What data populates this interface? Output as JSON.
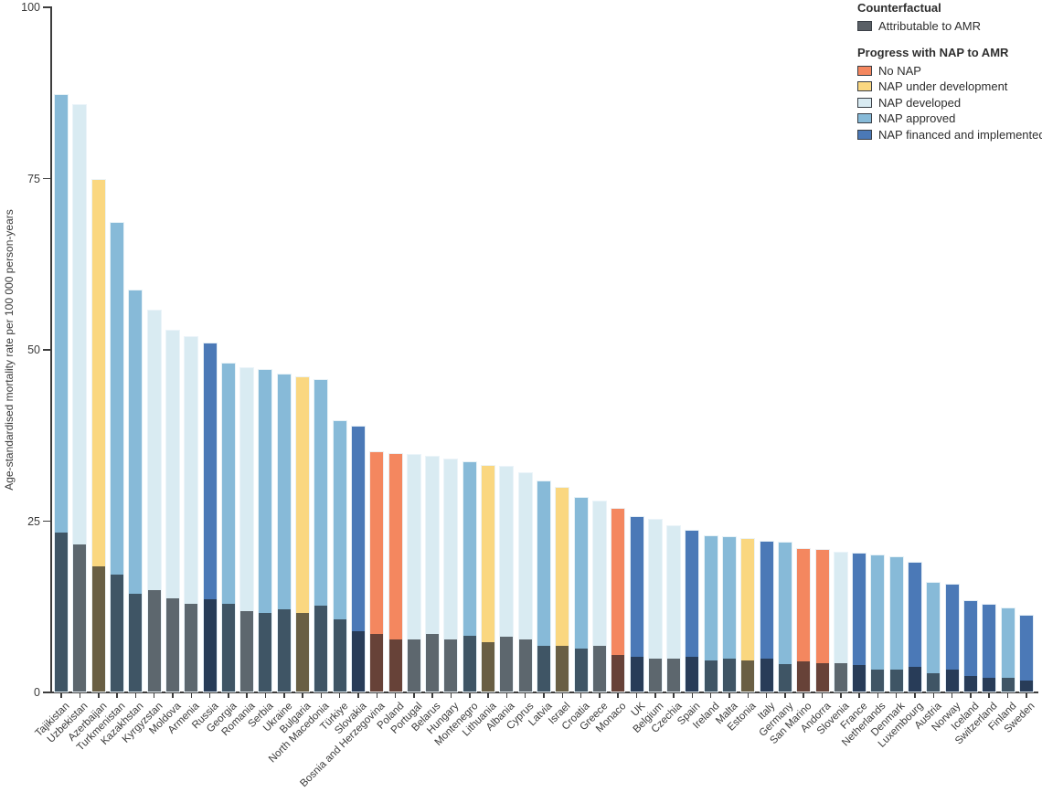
{
  "chart_data": {
    "type": "bar",
    "title": "",
    "xlabel": "",
    "ylabel": "Age-standardised mortality rate per 100 000 person-years",
    "ylim": [
      0,
      100
    ],
    "yticks": [
      0,
      25,
      50,
      75,
      100
    ],
    "grid": false,
    "legend_position": "top-right",
    "legend": {
      "counterfactual_title": "Counterfactual",
      "counterfactual_items": [
        {
          "label": "Attributable to AMR",
          "key": "attributable"
        }
      ],
      "nap_title": "Progress with NAP to AMR",
      "nap_items": [
        {
          "label": "No NAP",
          "key": "no_nap"
        },
        {
          "label": "NAP under development",
          "key": "under_development"
        },
        {
          "label": "NAP developed",
          "key": "developed"
        },
        {
          "label": "NAP approved",
          "key": "approved"
        },
        {
          "label": "NAP financed and implemented",
          "key": "financed"
        }
      ]
    },
    "colors": {
      "no_nap": "#F4875F",
      "under_development": "#FAD780",
      "developed": "#D9EBF2",
      "approved": "#87BAD8",
      "financed": "#4B79B7",
      "attributable_legend": "#5A6066"
    },
    "series_note": "total = full bar height (deaths associated with AMR); attributable = dark overlaid segment (attributable to AMR)",
    "countries": [
      {
        "name": "Tajikistan",
        "total": 87.3,
        "attributable": 23.4,
        "nap": "approved"
      },
      {
        "name": "Uzbekistan",
        "total": 85.9,
        "attributable": 21.6,
        "nap": "developed"
      },
      {
        "name": "Azerbaijan",
        "total": 75.0,
        "attributable": 18.4,
        "nap": "under_development"
      },
      {
        "name": "Turkmenistan",
        "total": 68.7,
        "attributable": 17.2,
        "nap": "approved"
      },
      {
        "name": "Kazakhstan",
        "total": 58.8,
        "attributable": 14.4,
        "nap": "approved"
      },
      {
        "name": "Kyrgyzstan",
        "total": 55.9,
        "attributable": 14.9,
        "nap": "developed"
      },
      {
        "name": "Moldova",
        "total": 52.9,
        "attributable": 13.8,
        "nap": "developed"
      },
      {
        "name": "Armenia",
        "total": 52.0,
        "attributable": 12.9,
        "nap": "developed"
      },
      {
        "name": "Russia",
        "total": 51.1,
        "attributable": 13.6,
        "nap": "financed"
      },
      {
        "name": "Georgia",
        "total": 48.1,
        "attributable": 12.9,
        "nap": "approved"
      },
      {
        "name": "Romania",
        "total": 47.5,
        "attributable": 11.9,
        "nap": "developed"
      },
      {
        "name": "Serbia",
        "total": 47.2,
        "attributable": 11.6,
        "nap": "approved"
      },
      {
        "name": "Ukraine",
        "total": 46.6,
        "attributable": 12.2,
        "nap": "approved"
      },
      {
        "name": "Bulgaria",
        "total": 46.2,
        "attributable": 11.6,
        "nap": "under_development"
      },
      {
        "name": "North Macedonia",
        "total": 45.8,
        "attributable": 12.7,
        "nap": "approved"
      },
      {
        "name": "Türkiye",
        "total": 39.8,
        "attributable": 10.7,
        "nap": "approved"
      },
      {
        "name": "Slovakia",
        "total": 39.0,
        "attributable": 8.9,
        "nap": "financed"
      },
      {
        "name": "Bosnia and Herzegovina",
        "total": 35.2,
        "attributable": 8.6,
        "nap": "no_nap"
      },
      {
        "name": "Poland",
        "total": 34.9,
        "attributable": 7.8,
        "nap": "no_nap"
      },
      {
        "name": "Portugal",
        "total": 34.8,
        "attributable": 7.7,
        "nap": "developed"
      },
      {
        "name": "Belarus",
        "total": 34.6,
        "attributable": 8.6,
        "nap": "developed"
      },
      {
        "name": "Hungary",
        "total": 34.1,
        "attributable": 7.8,
        "nap": "developed"
      },
      {
        "name": "Montenegro",
        "total": 33.8,
        "attributable": 8.3,
        "nap": "approved"
      },
      {
        "name": "Lithuania",
        "total": 33.2,
        "attributable": 7.3,
        "nap": "under_development"
      },
      {
        "name": "Albania",
        "total": 33.1,
        "attributable": 8.1,
        "nap": "developed"
      },
      {
        "name": "Cyprus",
        "total": 32.1,
        "attributable": 7.8,
        "nap": "developed"
      },
      {
        "name": "Latvia",
        "total": 31.0,
        "attributable": 6.8,
        "nap": "approved"
      },
      {
        "name": "Israel",
        "total": 30.0,
        "attributable": 6.8,
        "nap": "under_development"
      },
      {
        "name": "Croatia",
        "total": 28.6,
        "attributable": 6.4,
        "nap": "approved"
      },
      {
        "name": "Greece",
        "total": 28.0,
        "attributable": 6.8,
        "nap": "developed"
      },
      {
        "name": "Monaco",
        "total": 27.0,
        "attributable": 5.5,
        "nap": "no_nap"
      },
      {
        "name": "UK",
        "total": 25.7,
        "attributable": 5.2,
        "nap": "financed"
      },
      {
        "name": "Belgium",
        "total": 25.4,
        "attributable": 5.0,
        "nap": "developed"
      },
      {
        "name": "Czechia",
        "total": 24.4,
        "attributable": 5.0,
        "nap": "developed"
      },
      {
        "name": "Spain",
        "total": 23.8,
        "attributable": 5.2,
        "nap": "financed"
      },
      {
        "name": "Ireland",
        "total": 22.9,
        "attributable": 4.7,
        "nap": "approved"
      },
      {
        "name": "Malta",
        "total": 22.8,
        "attributable": 5.0,
        "nap": "approved"
      },
      {
        "name": "Estonia",
        "total": 22.6,
        "attributable": 4.7,
        "nap": "under_development"
      },
      {
        "name": "Italy",
        "total": 22.2,
        "attributable": 5.0,
        "nap": "financed"
      },
      {
        "name": "Germany",
        "total": 22.0,
        "attributable": 4.1,
        "nap": "approved"
      },
      {
        "name": "San Marino",
        "total": 21.1,
        "attributable": 4.5,
        "nap": "no_nap"
      },
      {
        "name": "Andorra",
        "total": 21.0,
        "attributable": 4.3,
        "nap": "no_nap"
      },
      {
        "name": "Slovenia",
        "total": 20.6,
        "attributable": 4.3,
        "nap": "developed"
      },
      {
        "name": "France",
        "total": 20.4,
        "attributable": 4.0,
        "nap": "financed"
      },
      {
        "name": "Netherlands",
        "total": 20.1,
        "attributable": 3.3,
        "nap": "approved"
      },
      {
        "name": "Denmark",
        "total": 19.9,
        "attributable": 3.3,
        "nap": "approved"
      },
      {
        "name": "Luxembourg",
        "total": 19.1,
        "attributable": 3.7,
        "nap": "financed"
      },
      {
        "name": "Austria",
        "total": 16.2,
        "attributable": 2.8,
        "nap": "approved"
      },
      {
        "name": "Norway",
        "total": 15.9,
        "attributable": 3.4,
        "nap": "financed"
      },
      {
        "name": "Iceland",
        "total": 13.5,
        "attributable": 2.4,
        "nap": "financed"
      },
      {
        "name": "Switzerland",
        "total": 12.9,
        "attributable": 2.2,
        "nap": "financed"
      },
      {
        "name": "Finland",
        "total": 12.4,
        "attributable": 2.2,
        "nap": "approved"
      },
      {
        "name": "Sweden",
        "total": 11.3,
        "attributable": 1.8,
        "nap": "financed"
      }
    ]
  }
}
